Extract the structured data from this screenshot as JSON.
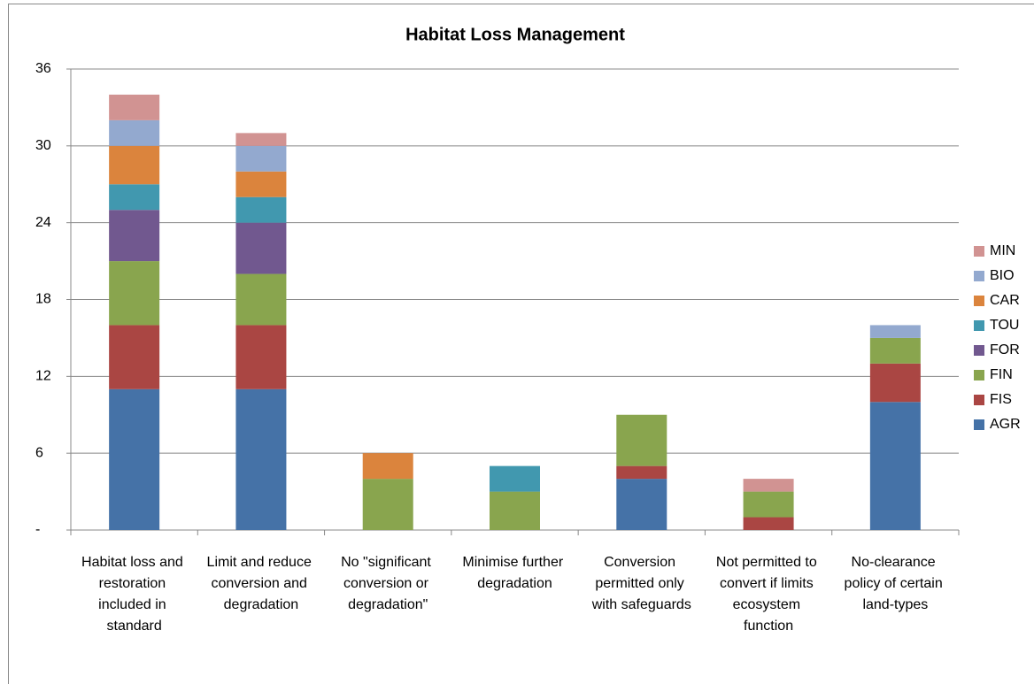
{
  "chart_data": {
    "type": "stacked_bar",
    "title": "Habitat Loss Management",
    "categories": [
      "Habitat loss and restoration included in standard",
      "Limit and reduce conversion and degradation",
      "No \"significant conversion or degradation\"",
      "Minimise further degradation",
      "Conversion permitted only with safeguards",
      "Not permitted to convert if limits ecosystem function",
      "No-clearance policy of certain land-types"
    ],
    "series": [
      {
        "name": "AGR",
        "color": "#4572a7",
        "values": [
          11,
          11,
          0,
          0,
          4,
          0,
          10
        ]
      },
      {
        "name": "FIS",
        "color": "#aa4643",
        "values": [
          5,
          5,
          0,
          0,
          1,
          1,
          3
        ]
      },
      {
        "name": "FIN",
        "color": "#89a54e",
        "values": [
          5,
          4,
          4,
          3,
          4,
          2,
          2
        ]
      },
      {
        "name": "FOR",
        "color": "#71588f",
        "values": [
          4,
          4,
          0,
          0,
          0,
          0,
          0
        ]
      },
      {
        "name": "TOU",
        "color": "#4198af",
        "values": [
          2,
          2,
          0,
          2,
          0,
          0,
          0
        ]
      },
      {
        "name": "CAR",
        "color": "#db843d",
        "values": [
          3,
          2,
          2,
          0,
          0,
          0,
          0
        ]
      },
      {
        "name": "BIO",
        "color": "#93a9cf",
        "values": [
          2,
          2,
          0,
          0,
          0,
          0,
          1
        ]
      },
      {
        "name": "MIN",
        "color": "#d19392",
        "values": [
          2,
          1,
          0,
          0,
          0,
          1,
          0
        ]
      }
    ],
    "ylim": [
      0,
      36
    ],
    "yticks": [
      {
        "value": 0,
        "label": "-"
      },
      6,
      12,
      18,
      24,
      30,
      36
    ],
    "grid": true,
    "legend": "right"
  }
}
